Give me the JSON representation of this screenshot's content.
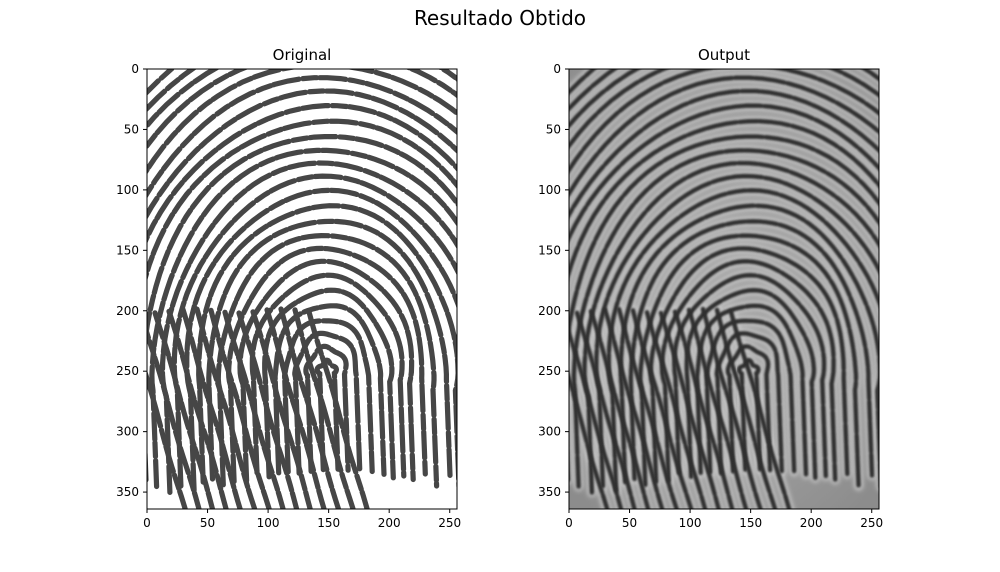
{
  "figure": {
    "suptitle": "Resultado Obtido"
  },
  "chart_data": [
    {
      "type": "image",
      "title": "Original",
      "xlabel": "",
      "ylabel": "",
      "xlim": [
        0,
        256
      ],
      "ylim": [
        364,
        0
      ],
      "x_ticks": [
        0,
        50,
        100,
        150,
        200,
        250
      ],
      "y_ticks": [
        0,
        50,
        100,
        150,
        200,
        250,
        300,
        350
      ],
      "colormap": "gray",
      "background": "#ffffff",
      "ridge_color": "#464646",
      "content": "fingerprint scan (binarized, dark ridges on white)"
    },
    {
      "type": "image",
      "title": "Output",
      "xlabel": "",
      "ylabel": "",
      "xlim": [
        0,
        256
      ],
      "ylim": [
        364,
        0
      ],
      "x_ticks": [
        0,
        50,
        100,
        150,
        200,
        250
      ],
      "y_ticks": [
        0,
        50,
        100,
        150,
        200,
        250,
        300,
        350
      ],
      "colormap": "gray",
      "background": "#9a9a9a",
      "ridge_color": "#2e2e2e",
      "content": "enhanced fingerprint (gray background, dark ridges with light valleys)"
    }
  ]
}
